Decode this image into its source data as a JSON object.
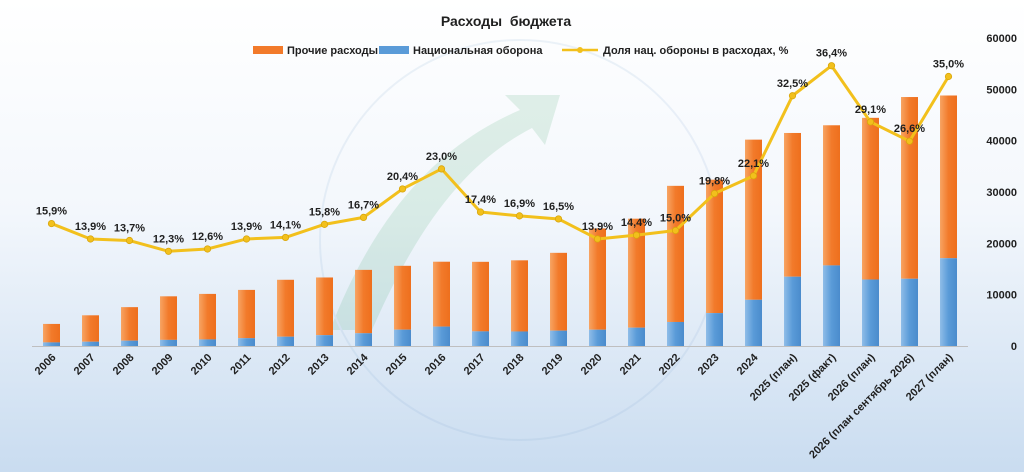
{
  "chart_data": {
    "type": "bar",
    "title": "Расходы  бюджета",
    "legend": {
      "placement": "top",
      "items": [
        {
          "label": "Прочие расходы",
          "color": "#f27a2a",
          "kind": "bar"
        },
        {
          "label": "Национальная оборона",
          "color": "#5a9bd8",
          "kind": "bar"
        },
        {
          "label": "Доля нац. обороны в расходах, %",
          "color": "#f2c01c",
          "kind": "line"
        }
      ]
    },
    "categories": [
      "2006",
      "2007",
      "2008",
      "2009",
      "2010",
      "2011",
      "2012",
      "2013",
      "2014",
      "2015",
      "2016",
      "2017",
      "2018",
      "2019",
      "2020",
      "2021",
      "2022",
      "2023",
      "2024",
      "2025 (план)",
      "2025 (факт)",
      "2026 (план)",
      "2026 (план сентябрь 2026)",
      "2027 (план)"
    ],
    "series": [
      {
        "name": "Национальная оборона",
        "axis": "right",
        "stack": "total",
        "color": "#5a9bd8",
        "values": [
          700,
          830,
          1040,
          1190,
          1280,
          1520,
          1810,
          2110,
          2480,
          3180,
          3780,
          2850,
          2830,
          2990,
          3170,
          3570,
          4680,
          6410,
          9000,
          13500,
          15700,
          12950,
          13100,
          17100
        ]
      },
      {
        "name": "Прочие расходы",
        "axis": "right",
        "stack": "total",
        "color": "#f27a2a",
        "values": [
          3600,
          5150,
          6530,
          8490,
          8870,
          9410,
          11090,
          11240,
          12350,
          12440,
          12640,
          13550,
          13860,
          15160,
          19730,
          21230,
          26520,
          25990,
          31200,
          28000,
          27300,
          31500,
          35400,
          31700
        ]
      },
      {
        "name": "Доля нац. обороны в расходах, %",
        "axis": "left",
        "type": "line",
        "color": "#f2c01c",
        "values": [
          15.9,
          13.9,
          13.7,
          12.3,
          12.6,
          13.9,
          14.1,
          15.8,
          16.7,
          20.4,
          23.0,
          17.4,
          16.9,
          16.5,
          13.9,
          14.4,
          15.0,
          19.8,
          22.1,
          32.5,
          36.4,
          29.1,
          26.6,
          35.0
        ],
        "labels": [
          "15,9%",
          "13,9%",
          "13,7%",
          "12,3%",
          "12,6%",
          "13,9%",
          "14,1%",
          "15,8%",
          "16,7%",
          "20,4%",
          "23,0%",
          "17,4%",
          "16,9%",
          "16,5%",
          "13,9%",
          "14,4%",
          "15,0%",
          "19,8%",
          "22,1%",
          "32,5%",
          "36,4%",
          "29,1%",
          "26,6%",
          "35,0%"
        ]
      }
    ],
    "y_right": {
      "range": [
        0,
        60000
      ],
      "ticks": [
        "0",
        "10000",
        "20000",
        "30000",
        "40000",
        "50000",
        "60000"
      ]
    },
    "y_left": {
      "range": [
        0,
        40
      ]
    },
    "grid": false
  }
}
